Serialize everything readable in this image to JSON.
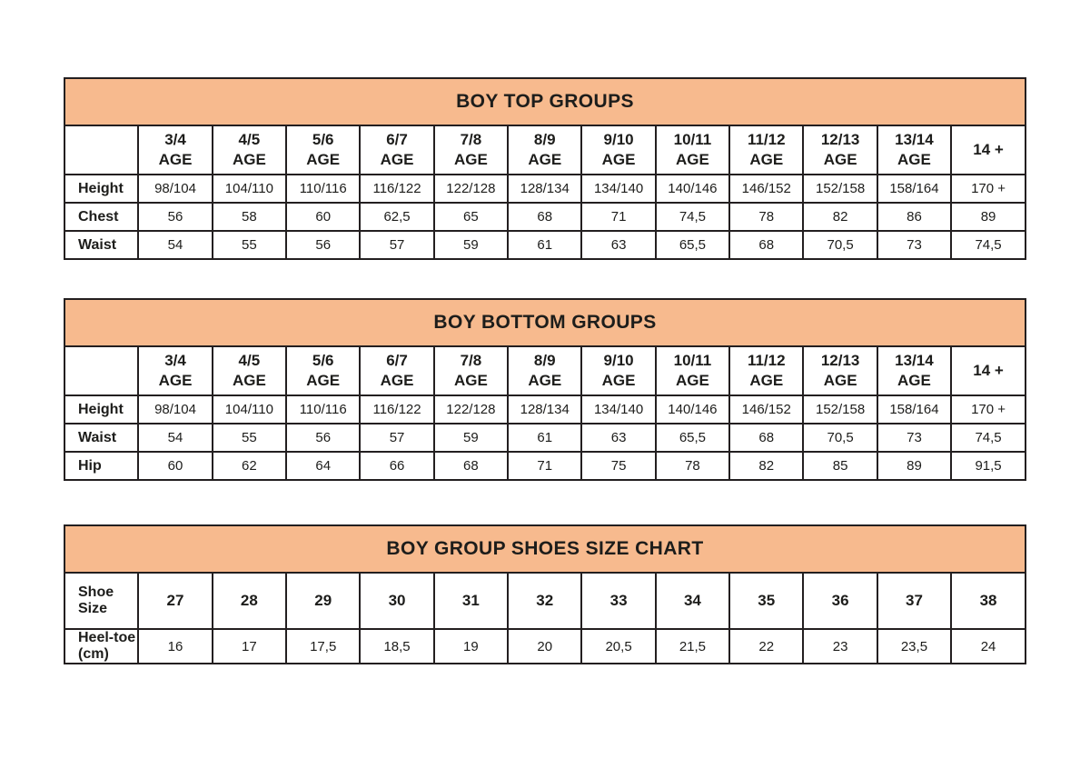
{
  "colors": {
    "header_bg": "#f7ba8e",
    "border": "#231f20",
    "text": "#1d1d1b",
    "cell_bg": "#ffffff"
  },
  "tables": [
    {
      "id": "boy-top-groups",
      "title": "BOY TOP GROUPS",
      "columns": [
        "3/4\nAGE",
        "4/5\nAGE",
        "5/6\nAGE",
        "6/7\nAGE",
        "7/8\nAGE",
        "8/9\nAGE",
        "9/10\nAGE",
        "10/11\nAGE",
        "11/12\nAGE",
        "12/13\nAGE",
        "13/14\nAGE",
        "14 +"
      ],
      "rows": [
        {
          "label": "Height",
          "emphasis": false,
          "values": [
            "98/104",
            "104/110",
            "110/116",
            "116/122",
            "122/128",
            "128/134",
            "134/140",
            "140/146",
            "146/152",
            "152/158",
            "158/164",
            "170 +"
          ]
        },
        {
          "label": "Chest",
          "emphasis": false,
          "values": [
            "56",
            "58",
            "60",
            "62,5",
            "65",
            "68",
            "71",
            "74,5",
            "78",
            "82",
            "86",
            "89"
          ]
        },
        {
          "label": "Waist",
          "emphasis": false,
          "values": [
            "54",
            "55",
            "56",
            "57",
            "59",
            "61",
            "63",
            "65,5",
            "68",
            "70,5",
            "73",
            "74,5"
          ]
        }
      ]
    },
    {
      "id": "boy-bottom-groups",
      "title": "BOY BOTTOM GROUPS",
      "columns": [
        "3/4\nAGE",
        "4/5\nAGE",
        "5/6\nAGE",
        "6/7\nAGE",
        "7/8\nAGE",
        "8/9\nAGE",
        "9/10\nAGE",
        "10/11\nAGE",
        "11/12\nAGE",
        "12/13\nAGE",
        "13/14\nAGE",
        "14 +"
      ],
      "rows": [
        {
          "label": "Height",
          "emphasis": false,
          "values": [
            "98/104",
            "104/110",
            "110/116",
            "116/122",
            "122/128",
            "128/134",
            "134/140",
            "140/146",
            "146/152",
            "152/158",
            "158/164",
            "170 +"
          ]
        },
        {
          "label": "Waist",
          "emphasis": false,
          "values": [
            "54",
            "55",
            "56",
            "57",
            "59",
            "61",
            "63",
            "65,5",
            "68",
            "70,5",
            "73",
            "74,5"
          ]
        },
        {
          "label": "Hip",
          "emphasis": false,
          "values": [
            "60",
            "62",
            "64",
            "66",
            "68",
            "71",
            "75",
            "78",
            "82",
            "85",
            "89",
            "91,5"
          ]
        }
      ]
    },
    {
      "id": "boy-group-shoes-size-chart",
      "title": "BOY GROUP SHOES SIZE CHART",
      "columns": [],
      "rows": [
        {
          "label": "Shoe Size",
          "emphasis": true,
          "values": [
            "27",
            "28",
            "29",
            "30",
            "31",
            "32",
            "33",
            "34",
            "35",
            "36",
            "37",
            "38"
          ]
        },
        {
          "label": "Heel-toe (cm)",
          "emphasis": false,
          "values": [
            "16",
            "17",
            "17,5",
            "18,5",
            "19",
            "20",
            "20,5",
            "21,5",
            "22",
            "23",
            "23,5",
            "24"
          ]
        }
      ]
    }
  ]
}
